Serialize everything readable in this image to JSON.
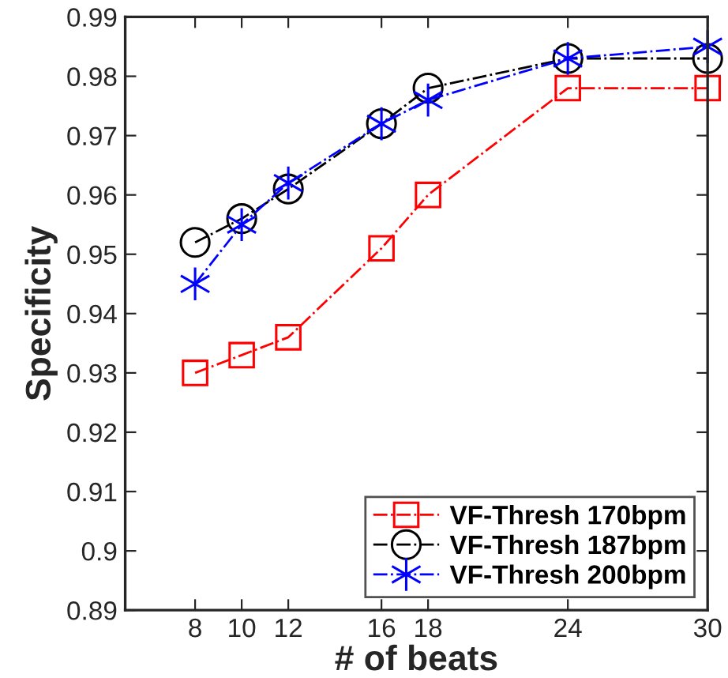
{
  "chart_data": {
    "type": "line",
    "xlabel": "# of beats",
    "ylabel": "Specificity",
    "x": [
      8,
      10,
      12,
      16,
      18,
      24,
      30
    ],
    "xlim": [
      5,
      30
    ],
    "xticks": [
      8,
      10,
      12,
      16,
      18,
      24,
      30
    ],
    "ylim": [
      0.89,
      0.99
    ],
    "yticks": [
      0.89,
      0.9,
      0.91,
      0.92,
      0.93,
      0.94,
      0.95,
      0.96,
      0.97,
      0.98,
      0.99
    ],
    "grid": false,
    "legend": "bottom right",
    "line_style": "dash-dot",
    "series": [
      {
        "name": "VF-Thresh 170bpm",
        "color": "#ff0000",
        "marker": "square",
        "values": [
          0.93,
          0.933,
          0.936,
          0.951,
          0.96,
          0.978,
          0.978
        ]
      },
      {
        "name": "VF-Thresh 187bpm",
        "color": "#000000",
        "marker": "circle",
        "values": [
          0.952,
          0.956,
          0.961,
          0.972,
          0.978,
          0.983,
          0.983
        ]
      },
      {
        "name": "VF-Thresh 200bpm",
        "color": "#0000ff",
        "marker": "cross",
        "values": [
          0.945,
          0.955,
          0.962,
          0.972,
          0.976,
          0.983,
          0.985
        ]
      }
    ]
  }
}
